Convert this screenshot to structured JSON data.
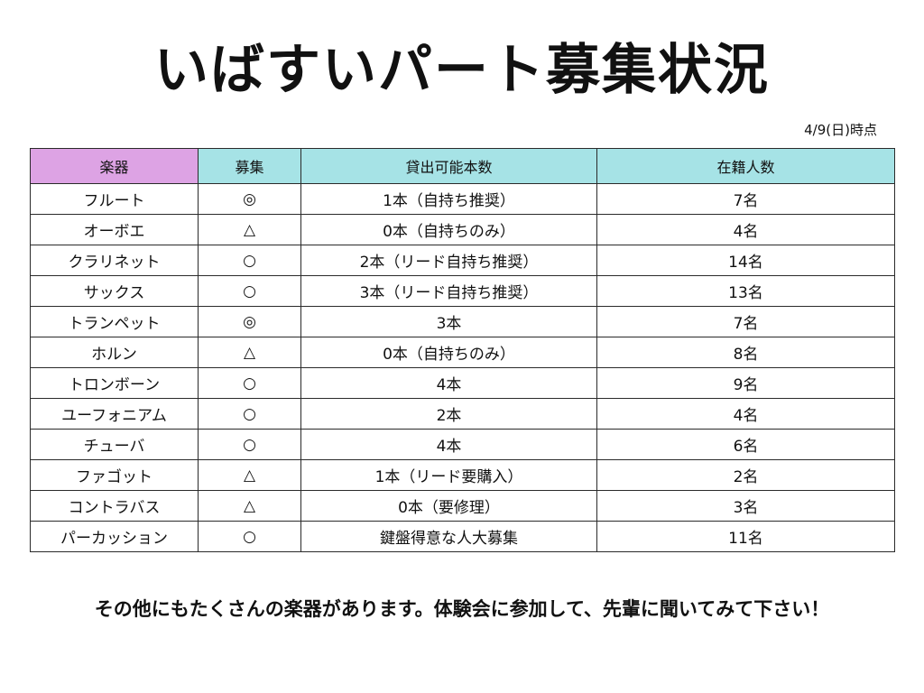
{
  "title": "いばすいパート募集状況",
  "date": "4/9(日)時点",
  "table": {
    "headers": [
      "楽器",
      "募集",
      "貸出可能本数",
      "在籍人数"
    ],
    "rows": [
      [
        "フルート",
        "◎",
        "1本（自持ち推奨）",
        "7名"
      ],
      [
        "オーボエ",
        "△",
        "0本（自持ちのみ）",
        "4名"
      ],
      [
        "クラリネット",
        "○",
        "2本（リード自持ち推奨）",
        "14名"
      ],
      [
        "サックス",
        "○",
        "3本（リード自持ち推奨）",
        "13名"
      ],
      [
        "トランペット",
        "◎",
        "3本",
        "7名"
      ],
      [
        "ホルン",
        "△",
        "0本（自持ちのみ）",
        "8名"
      ],
      [
        "トロンボーン",
        "○",
        "4本",
        "9名"
      ],
      [
        "ユーフォニアム",
        "○",
        "2本",
        "4名"
      ],
      [
        "チューバ",
        "○",
        "4本",
        "6名"
      ],
      [
        "ファゴット",
        "△",
        "1本（リード要購入）",
        "2名"
      ],
      [
        "コントラバス",
        "△",
        "0本（要修理）",
        "3名"
      ],
      [
        "パーカッション",
        "○",
        "鍵盤得意な人大募集",
        "11名"
      ]
    ]
  },
  "footer": "その他にもたくさんの楽器があります。体験会に参加して、先輩に聞いてみて下さい！",
  "colors": {
    "header_first": "#dda3e4",
    "header_rest": "#a6e3e6",
    "border": "#2a2a2a"
  }
}
